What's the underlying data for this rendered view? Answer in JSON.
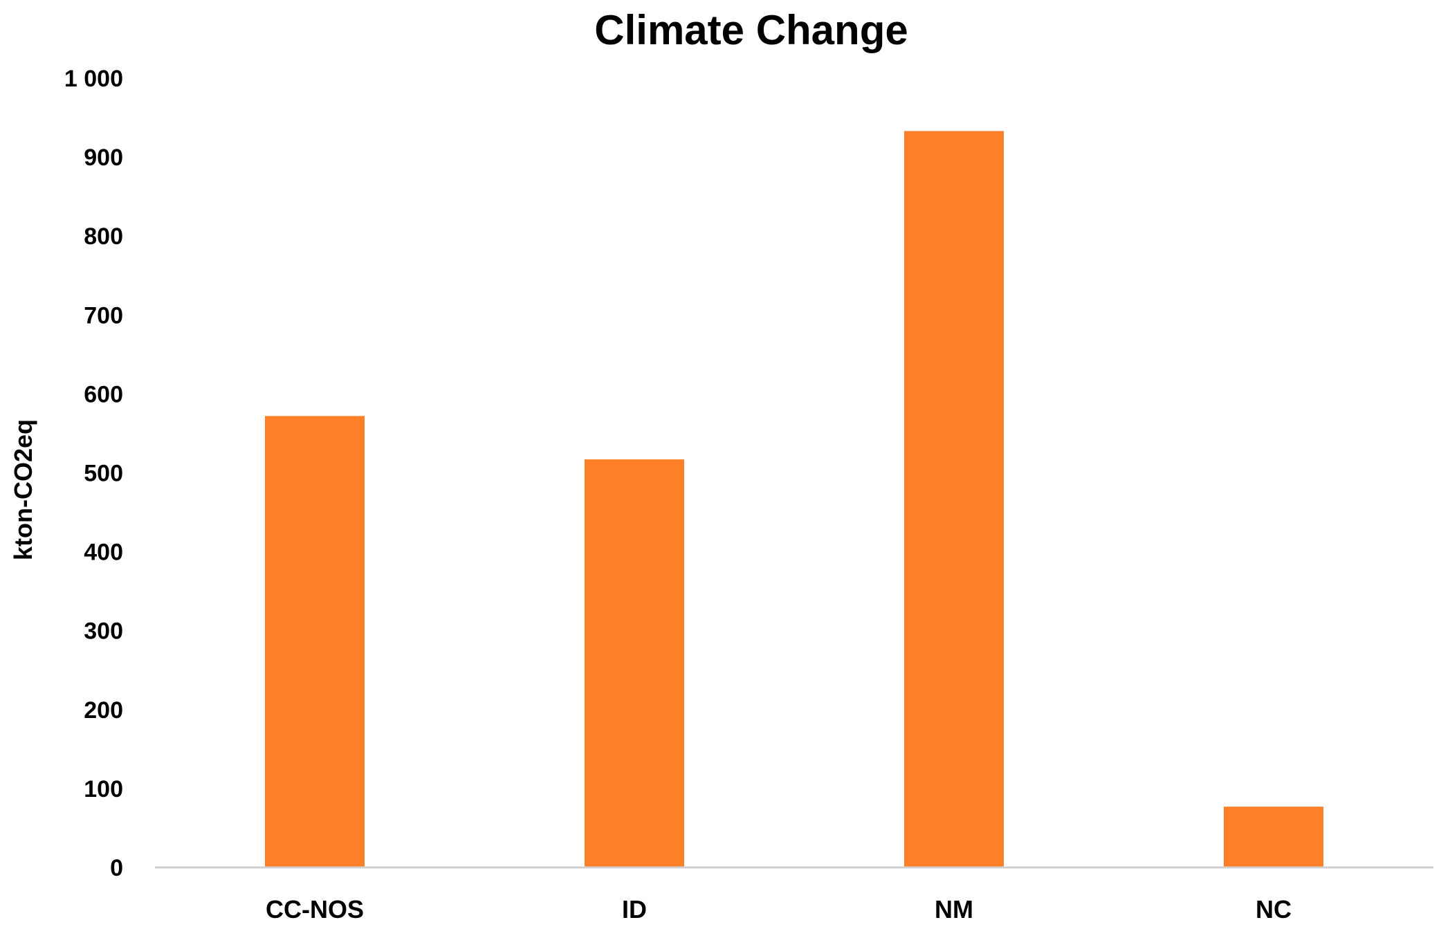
{
  "chart_data": {
    "type": "bar",
    "title": "Climate Change",
    "xlabel": "",
    "ylabel": "kton-CO2eq",
    "categories": [
      "CC-NOS",
      "ID",
      "NM",
      "NC"
    ],
    "values": [
      572,
      517,
      933,
      77
    ],
    "ylim": [
      0,
      1000
    ],
    "yticks": [
      0,
      100,
      200,
      300,
      400,
      500,
      600,
      700,
      800,
      900,
      1000
    ],
    "ytick_labels": [
      "0",
      "100",
      "200",
      "300",
      "400",
      "500",
      "600",
      "700",
      "800",
      "900",
      "1 000"
    ],
    "bar_color": "#FD7F27",
    "axis_color": "#D0D0D0",
    "grid": false,
    "legend": "none"
  }
}
